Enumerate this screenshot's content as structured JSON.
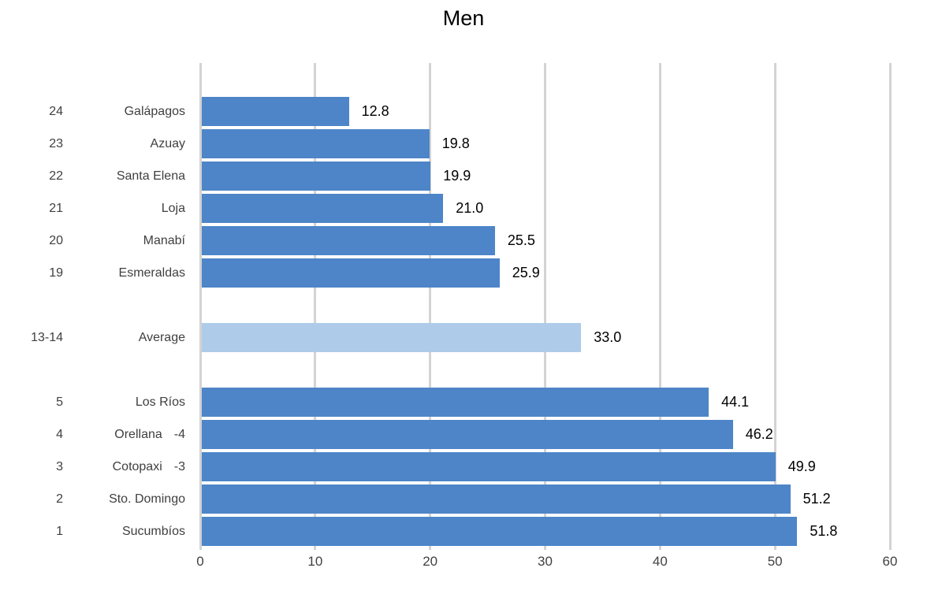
{
  "title": "Men",
  "colors": {
    "bar": "#4d85c8",
    "average_bar": "#aecbe9",
    "gridline": "#d3d3d3",
    "row_label_text": "#3f3f3f",
    "axis_label_text": "#404040",
    "value_label_text": "#000000",
    "title_text": "#000000"
  },
  "chart_data": {
    "type": "bar",
    "orientation": "horizontal",
    "title": "Men",
    "xlabel": "",
    "ylabel": "",
    "xlim": [
      0,
      60
    ],
    "x_ticks": [
      "0",
      "10",
      "20",
      "30",
      "40",
      "50",
      "60"
    ],
    "grid": true,
    "legend": false,
    "rows": [
      {
        "rank": "24",
        "name": "Galápagos",
        "value": 12.8,
        "value_label": "12.8",
        "highlight": false
      },
      {
        "rank": "23",
        "name": "Azuay",
        "value": 19.8,
        "value_label": "19.8",
        "highlight": false
      },
      {
        "rank": "22",
        "name": "Santa Elena",
        "value": 19.9,
        "value_label": "19.9",
        "highlight": false
      },
      {
        "rank": "21",
        "name": "Loja",
        "value": 21.0,
        "value_label": "21.0",
        "highlight": false
      },
      {
        "rank": "20",
        "name": "Manabí",
        "value": 25.5,
        "value_label": "25.5",
        "highlight": false
      },
      {
        "rank": "19",
        "name": "Esmeraldas",
        "value": 25.9,
        "value_label": "25.9",
        "highlight": false
      },
      {
        "spacer": true
      },
      {
        "rank": "13-14",
        "name": "Average",
        "value": 33.0,
        "value_label": "33.0",
        "highlight": true
      },
      {
        "spacer": true
      },
      {
        "rank": "5",
        "name": "Los Ríos",
        "value": 44.1,
        "value_label": "44.1",
        "highlight": false
      },
      {
        "rank": "4",
        "name": "Orellana",
        "suffix": "-4",
        "value": 46.2,
        "value_label": "46.2",
        "highlight": false
      },
      {
        "rank": "3",
        "name": "Cotopaxi",
        "suffix": "-3",
        "value": 49.9,
        "value_label": "49.9",
        "highlight": false
      },
      {
        "rank": "2",
        "name": "Sto. Domingo",
        "value": 51.2,
        "value_label": "51.2",
        "highlight": false
      },
      {
        "rank": "1",
        "name": "Sucumbíos",
        "value": 51.8,
        "value_label": "51.8",
        "highlight": false
      }
    ]
  }
}
